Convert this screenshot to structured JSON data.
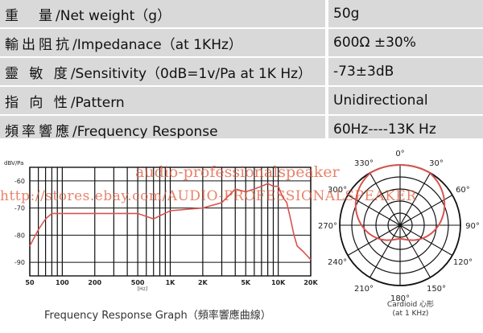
{
  "specs": [
    {
      "label_zh": "重　量",
      "label_en": "/Net weight（g）",
      "value": "50g"
    },
    {
      "label_zh": "輸出阻抗",
      "label_en": "/Impedanace（at 1KHz）",
      "value": "600Ω ±30%"
    },
    {
      "label_zh": "靈 敏 度",
      "label_en": "/Sensitivity（0dB=1v/Pa at 1K Hz）",
      "value": "-73±3dB"
    },
    {
      "label_zh": "指 向 性",
      "label_en": "/Pattern",
      "value": "Unidirectional"
    },
    {
      "label_zh": "頻率響應",
      "label_en": "/Frequency Response",
      "value": "60Hz----13K Hz"
    }
  ],
  "watermark": {
    "line1": "audio-professionalspeaker",
    "line2": "http://stores.ebay.com/AUDIO-PROFESSIONALSPEAKER"
  },
  "chart_data": [
    {
      "type": "line",
      "unit_label": "dBV/Pa",
      "x_unit_label": "[Hz]",
      "caption": "Frequency Response Graph（頻率響應曲線）",
      "x_scale": "log",
      "xlim": [
        50,
        20000
      ],
      "ylim": [
        -95,
        -55
      ],
      "y_ticks": [
        -60,
        -70,
        -80,
        -90
      ],
      "x_ticks": [
        "50",
        "100",
        "200",
        "500",
        "1K",
        "2K",
        "5K",
        "10K",
        "20K"
      ],
      "grid": true,
      "series_color": "#d9534f",
      "series": [
        {
          "x": [
            50,
            60,
            70,
            80,
            100,
            150,
            200,
            300,
            500,
            700,
            1000,
            2000,
            3000,
            4000,
            5000,
            6000,
            7000,
            8000,
            9000,
            10000,
            11000,
            12000,
            13000,
            14000,
            15000,
            17000,
            20000
          ],
          "y": [
            -84,
            -78,
            -74,
            -72,
            -72,
            -72,
            -72,
            -72,
            -72,
            -74,
            -71,
            -70,
            -68,
            -63,
            -64,
            -63,
            -62,
            -61,
            -62,
            -62,
            -66,
            -68,
            -74,
            -80,
            -84,
            -86,
            -89
          ]
        }
      ]
    },
    {
      "type": "polar",
      "pattern": "Cardioid",
      "caption_line1": "Cardioid 心形",
      "caption_line2": "(at 1 KHz)",
      "angle_labels": [
        "0°",
        "30°",
        "60°",
        "90°",
        "120°",
        "150°",
        "180°",
        "210°",
        "240°",
        "270°",
        "300°",
        "330°"
      ],
      "series_color": "#d9534f"
    }
  ]
}
